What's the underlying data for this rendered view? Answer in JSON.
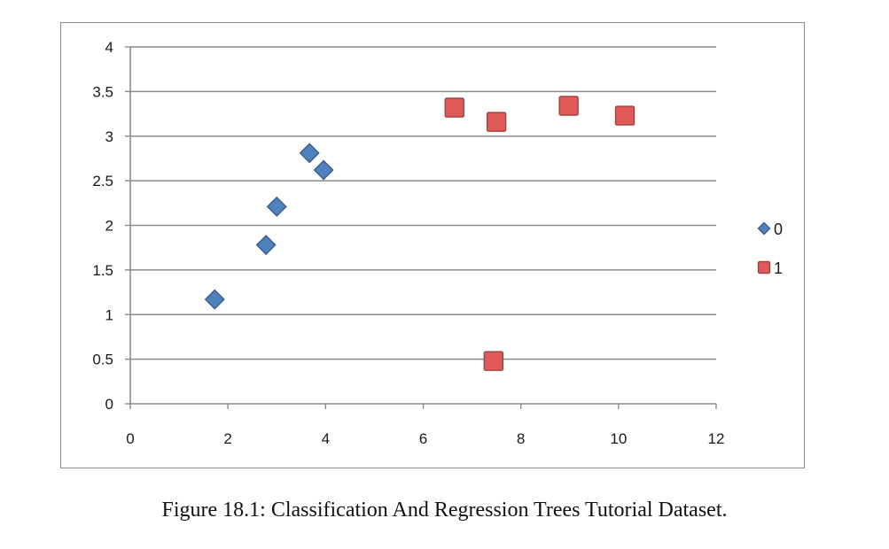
{
  "figure": {
    "caption": "Figure 18.1: Classification And Regression Trees Tutorial Dataset."
  },
  "chart_data": {
    "type": "scatter",
    "title": "",
    "xlabel": "",
    "ylabel": "",
    "xlim": [
      0,
      12
    ],
    "ylim": [
      0,
      4
    ],
    "xticks": [
      0,
      2,
      4,
      6,
      8,
      10,
      12
    ],
    "yticks": [
      0,
      0.5,
      1,
      1.5,
      2,
      2.5,
      3,
      3.5,
      4
    ],
    "grid": "horizontal",
    "legend": "right",
    "series": [
      {
        "name": "0",
        "marker": "diamond",
        "color": "#4f81bd",
        "points": [
          {
            "x": 1.73,
            "y": 1.17
          },
          {
            "x": 2.78,
            "y": 1.78
          },
          {
            "x": 3.0,
            "y": 2.21
          },
          {
            "x": 3.67,
            "y": 2.81
          },
          {
            "x": 3.96,
            "y": 2.62
          }
        ]
      },
      {
        "name": "1",
        "marker": "square",
        "color": "#e05a5a",
        "points": [
          {
            "x": 6.64,
            "y": 3.32
          },
          {
            "x": 7.5,
            "y": 3.16
          },
          {
            "x": 8.98,
            "y": 3.34
          },
          {
            "x": 10.13,
            "y": 3.23
          },
          {
            "x": 7.44,
            "y": 0.48
          }
        ]
      }
    ]
  }
}
